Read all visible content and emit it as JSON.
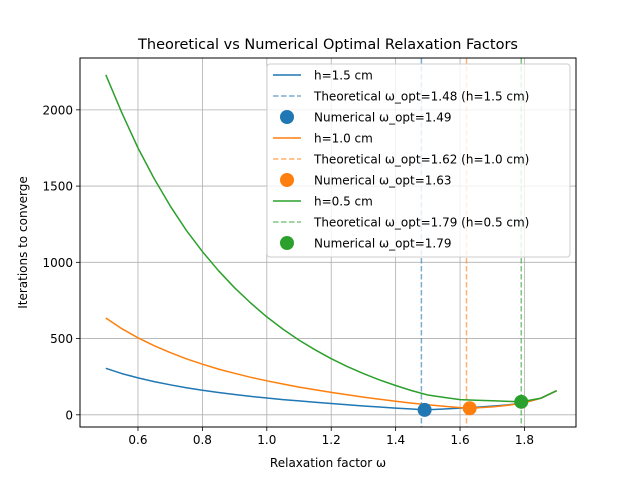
{
  "chart_data": {
    "type": "line",
    "title": "Theoretical vs Numerical Optimal Relaxation Factors",
    "xlabel": "Relaxation factor ω",
    "ylabel": "Iterations to converge",
    "xlim": [
      0.42,
      1.96
    ],
    "ylim": [
      -80,
      2340
    ],
    "xticks": [
      "0.6",
      "0.8",
      "1.0",
      "1.2",
      "1.4",
      "1.6",
      "1.8"
    ],
    "yticks": [
      "0",
      "500",
      "1000",
      "1500",
      "2000"
    ],
    "grid": true,
    "legend_position": "top-right",
    "colors": {
      "blue": "#1f77b4",
      "orange": "#ff7f0e",
      "green": "#2ca02c"
    },
    "series": [
      {
        "name": "h=1.5 cm",
        "color": "#1f77b4",
        "x": [
          0.5,
          0.55,
          0.6,
          0.65,
          0.7,
          0.75,
          0.8,
          0.85,
          0.9,
          0.95,
          1.0,
          1.05,
          1.1,
          1.15,
          1.2,
          1.25,
          1.3,
          1.35,
          1.4,
          1.45,
          1.49,
          1.55,
          1.6,
          1.65,
          1.7,
          1.75,
          1.8,
          1.85,
          1.9
        ],
        "y": [
          305,
          270,
          242,
          218,
          197,
          178,
          161,
          146,
          133,
          121,
          110,
          100,
          91,
          82,
          74,
          66,
          58,
          51,
          44,
          38,
          32,
          38,
          44,
          50,
          57,
          65,
          80,
          108,
          158
        ]
      },
      {
        "name": "h=1.0 cm",
        "color": "#ff7f0e",
        "x": [
          0.5,
          0.55,
          0.6,
          0.65,
          0.7,
          0.75,
          0.8,
          0.85,
          0.9,
          0.95,
          1.0,
          1.05,
          1.1,
          1.15,
          1.2,
          1.25,
          1.3,
          1.35,
          1.4,
          1.45,
          1.5,
          1.55,
          1.6,
          1.63,
          1.65,
          1.7,
          1.75,
          1.8,
          1.85,
          1.9
        ],
        "y": [
          635,
          565,
          505,
          453,
          408,
          367,
          332,
          300,
          272,
          246,
          223,
          202,
          182,
          164,
          147,
          131,
          116,
          102,
          89,
          77,
          66,
          56,
          47,
          43,
          45,
          52,
          63,
          80,
          108,
          158
        ]
      },
      {
        "name": "h=0.5 cm",
        "color": "#2ca02c",
        "x": [
          0.5,
          0.55,
          0.6,
          0.65,
          0.7,
          0.75,
          0.8,
          0.85,
          0.9,
          0.95,
          1.0,
          1.05,
          1.1,
          1.15,
          1.2,
          1.25,
          1.3,
          1.35,
          1.4,
          1.45,
          1.5,
          1.55,
          1.6,
          1.65,
          1.7,
          1.75,
          1.79,
          1.85,
          1.9
        ],
        "y": [
          2230,
          1980,
          1750,
          1550,
          1370,
          1210,
          1070,
          945,
          833,
          733,
          642,
          562,
          490,
          426,
          368,
          316,
          270,
          229,
          192,
          159,
          130,
          114,
          100,
          95,
          92,
          88,
          85,
          108,
          158
        ]
      }
    ],
    "theoretical": [
      {
        "label": "Theoretical ω_opt=1.48 (h=1.5 cm)",
        "x": 1.48,
        "color": "#1f77b4"
      },
      {
        "label": "Theoretical ω_opt=1.62 (h=1.0 cm)",
        "x": 1.62,
        "color": "#ff7f0e"
      },
      {
        "label": "Theoretical ω_opt=1.79 (h=0.5 cm)",
        "x": 1.79,
        "color": "#2ca02c"
      }
    ],
    "numerical": [
      {
        "label": "Numerical ω_opt=1.49",
        "x": 1.49,
        "y": 32,
        "color": "#1f77b4"
      },
      {
        "label": "Numerical ω_opt=1.63",
        "x": 1.63,
        "y": 43,
        "color": "#ff7f0e"
      },
      {
        "label": "Numerical ω_opt=1.79",
        "x": 1.79,
        "y": 85,
        "color": "#2ca02c"
      }
    ],
    "legend": [
      {
        "kind": "line",
        "label": "h=1.5 cm",
        "color": "#1f77b4"
      },
      {
        "kind": "dashed",
        "label": "Theoretical ω_opt=1.48 (h=1.5 cm)",
        "color": "#1f77b4"
      },
      {
        "kind": "marker",
        "label": "Numerical ω_opt=1.49",
        "color": "#1f77b4"
      },
      {
        "kind": "line",
        "label": "h=1.0 cm",
        "color": "#ff7f0e"
      },
      {
        "kind": "dashed",
        "label": "Theoretical ω_opt=1.62 (h=1.0 cm)",
        "color": "#ff7f0e"
      },
      {
        "kind": "marker",
        "label": "Numerical ω_opt=1.63",
        "color": "#ff7f0e"
      },
      {
        "kind": "line",
        "label": "h=0.5 cm",
        "color": "#2ca02c"
      },
      {
        "kind": "dashed",
        "label": "Theoretical ω_opt=1.79 (h=0.5 cm)",
        "color": "#2ca02c"
      },
      {
        "kind": "marker",
        "label": "Numerical ω_opt=1.79",
        "color": "#2ca02c"
      }
    ]
  }
}
